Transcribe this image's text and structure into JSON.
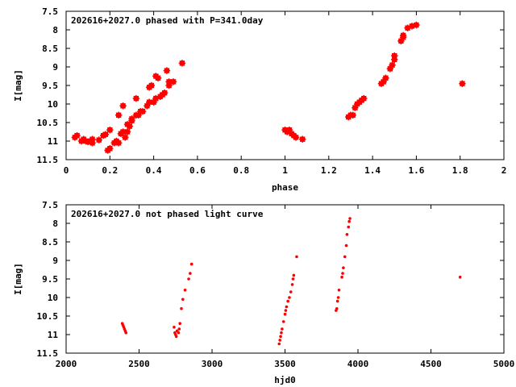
{
  "colors": {
    "marker": "#ff0000",
    "axis": "#000000",
    "background": "#ffffff"
  },
  "chart_data": [
    {
      "type": "scatter",
      "title": "202616+2027.0 phased with P=341.0day",
      "xlabel": "phase",
      "ylabel": "I[mag]",
      "xlim": [
        0,
        2
      ],
      "ylim": [
        7.5,
        11.5
      ],
      "y_inverted": true,
      "grid": false,
      "legend": "none",
      "x_ticks": [
        {
          "value": 0,
          "label": "0"
        },
        {
          "value": 0.2,
          "label": "0.2"
        },
        {
          "value": 0.4,
          "label": "0.4"
        },
        {
          "value": 0.6,
          "label": "0.6"
        },
        {
          "value": 0.8,
          "label": "0.8"
        },
        {
          "value": 1,
          "label": "1"
        },
        {
          "value": 1.2,
          "label": "1.2"
        },
        {
          "value": 1.4,
          "label": "1.4"
        },
        {
          "value": 1.6,
          "label": "1.6"
        },
        {
          "value": 1.8,
          "label": "1.8"
        },
        {
          "value": 2,
          "label": "2"
        }
      ],
      "y_ticks": [
        {
          "value": 7.5,
          "label": "7.5"
        },
        {
          "value": 8,
          "label": "8"
        },
        {
          "value": 8.5,
          "label": "8.5"
        },
        {
          "value": 9,
          "label": "9"
        },
        {
          "value": 9.5,
          "label": "9.5"
        },
        {
          "value": 10,
          "label": "10"
        },
        {
          "value": 10.5,
          "label": "10.5"
        },
        {
          "value": 11,
          "label": "11"
        },
        {
          "value": 11.5,
          "label": "11.5"
        }
      ],
      "points": [
        [
          0.04,
          10.9
        ],
        [
          0.05,
          10.85
        ],
        [
          0.07,
          11.0
        ],
        [
          0.08,
          10.95
        ],
        [
          0.09,
          11.0
        ],
        [
          0.1,
          11.02
        ],
        [
          0.11,
          11.0
        ],
        [
          0.12,
          11.05
        ],
        [
          0.12,
          10.95
        ],
        [
          0.15,
          10.97
        ],
        [
          0.17,
          10.85
        ],
        [
          0.18,
          10.82
        ],
        [
          0.19,
          11.25
        ],
        [
          0.2,
          11.2
        ],
        [
          0.2,
          10.7
        ],
        [
          0.22,
          11.05
        ],
        [
          0.23,
          11.0
        ],
        [
          0.24,
          11.05
        ],
        [
          0.24,
          10.3
        ],
        [
          0.25,
          10.8
        ],
        [
          0.26,
          10.75
        ],
        [
          0.26,
          10.05
        ],
        [
          0.27,
          10.9
        ],
        [
          0.28,
          10.75
        ],
        [
          0.28,
          10.55
        ],
        [
          0.29,
          10.6
        ],
        [
          0.3,
          10.45
        ],
        [
          0.3,
          10.4
        ],
        [
          0.32,
          10.3
        ],
        [
          0.32,
          9.85
        ],
        [
          0.33,
          10.3
        ],
        [
          0.34,
          10.2
        ],
        [
          0.35,
          10.2
        ],
        [
          0.37,
          10.05
        ],
        [
          0.38,
          9.95
        ],
        [
          0.38,
          9.55
        ],
        [
          0.39,
          9.5
        ],
        [
          0.4,
          9.95
        ],
        [
          0.41,
          9.85
        ],
        [
          0.41,
          9.25
        ],
        [
          0.42,
          9.3
        ],
        [
          0.43,
          9.8
        ],
        [
          0.44,
          9.75
        ],
        [
          0.45,
          9.7
        ],
        [
          0.46,
          9.1
        ],
        [
          0.47,
          9.5
        ],
        [
          0.47,
          9.4
        ],
        [
          0.49,
          9.4
        ],
        [
          0.53,
          8.9
        ],
        [
          1.0,
          10.7
        ],
        [
          1.01,
          10.75
        ],
        [
          1.02,
          10.7
        ],
        [
          1.03,
          10.8
        ],
        [
          1.04,
          10.85
        ],
        [
          1.05,
          10.9
        ],
        [
          1.08,
          10.95
        ],
        [
          1.29,
          10.35
        ],
        [
          1.3,
          10.3
        ],
        [
          1.31,
          10.3
        ],
        [
          1.32,
          10.1
        ],
        [
          1.33,
          10.0
        ],
        [
          1.34,
          9.95
        ],
        [
          1.35,
          9.9
        ],
        [
          1.36,
          9.85
        ],
        [
          1.44,
          9.45
        ],
        [
          1.45,
          9.4
        ],
        [
          1.46,
          9.3
        ],
        [
          1.48,
          9.05
        ],
        [
          1.49,
          8.95
        ],
        [
          1.5,
          8.8
        ],
        [
          1.5,
          8.7
        ],
        [
          1.53,
          8.3
        ],
        [
          1.54,
          8.2
        ],
        [
          1.54,
          8.15
        ],
        [
          1.56,
          7.95
        ],
        [
          1.58,
          7.9
        ],
        [
          1.6,
          7.87
        ],
        [
          1.81,
          9.45
        ]
      ]
    },
    {
      "type": "scatter",
      "title": "202616+2027.0 not phased light curve",
      "xlabel": "hjd0",
      "ylabel": "I[mag]",
      "xlim": [
        2000,
        5000
      ],
      "ylim": [
        7.5,
        11.5
      ],
      "y_inverted": true,
      "grid": false,
      "legend": "none",
      "x_ticks": [
        {
          "value": 2000,
          "label": "2000"
        },
        {
          "value": 2500,
          "label": "2500"
        },
        {
          "value": 3000,
          "label": "3000"
        },
        {
          "value": 3500,
          "label": "3500"
        },
        {
          "value": 4000,
          "label": "4000"
        },
        {
          "value": 4500,
          "label": "4500"
        },
        {
          "value": 5000,
          "label": "5000"
        }
      ],
      "y_ticks": [
        {
          "value": 7.5,
          "label": "7.5"
        },
        {
          "value": 8,
          "label": "8"
        },
        {
          "value": 8.5,
          "label": "8.5"
        },
        {
          "value": 9,
          "label": "9"
        },
        {
          "value": 9.5,
          "label": "9.5"
        },
        {
          "value": 10,
          "label": "10"
        },
        {
          "value": 10.5,
          "label": "10.5"
        },
        {
          "value": 11,
          "label": "11"
        },
        {
          "value": 11.5,
          "label": "11.5"
        }
      ],
      "points": [
        [
          2385,
          10.7
        ],
        [
          2390,
          10.75
        ],
        [
          2395,
          10.8
        ],
        [
          2400,
          10.85
        ],
        [
          2405,
          10.9
        ],
        [
          2410,
          10.95
        ],
        [
          2740,
          10.8
        ],
        [
          2745,
          10.95
        ],
        [
          2750,
          11.0
        ],
        [
          2755,
          11.05
        ],
        [
          2760,
          10.9
        ],
        [
          2770,
          10.95
        ],
        [
          2775,
          10.85
        ],
        [
          2780,
          10.7
        ],
        [
          2790,
          10.3
        ],
        [
          2800,
          10.05
        ],
        [
          2815,
          9.8
        ],
        [
          2840,
          9.5
        ],
        [
          2850,
          9.35
        ],
        [
          2860,
          9.1
        ],
        [
          3460,
          11.25
        ],
        [
          3465,
          11.15
        ],
        [
          3470,
          11.05
        ],
        [
          3475,
          10.95
        ],
        [
          3480,
          10.85
        ],
        [
          3490,
          10.65
        ],
        [
          3500,
          10.45
        ],
        [
          3505,
          10.35
        ],
        [
          3510,
          10.25
        ],
        [
          3520,
          10.1
        ],
        [
          3530,
          10.0
        ],
        [
          3540,
          9.85
        ],
        [
          3550,
          9.65
        ],
        [
          3555,
          9.5
        ],
        [
          3560,
          9.4
        ],
        [
          3580,
          8.9
        ],
        [
          3850,
          10.35
        ],
        [
          3855,
          10.3
        ],
        [
          3860,
          10.1
        ],
        [
          3865,
          10.0
        ],
        [
          3870,
          9.8
        ],
        [
          3890,
          9.45
        ],
        [
          3895,
          9.35
        ],
        [
          3900,
          9.2
        ],
        [
          3910,
          8.9
        ],
        [
          3920,
          8.6
        ],
        [
          3925,
          8.3
        ],
        [
          3935,
          8.1
        ],
        [
          3940,
          7.95
        ],
        [
          3945,
          7.87
        ],
        [
          4700,
          9.45
        ]
      ]
    }
  ]
}
